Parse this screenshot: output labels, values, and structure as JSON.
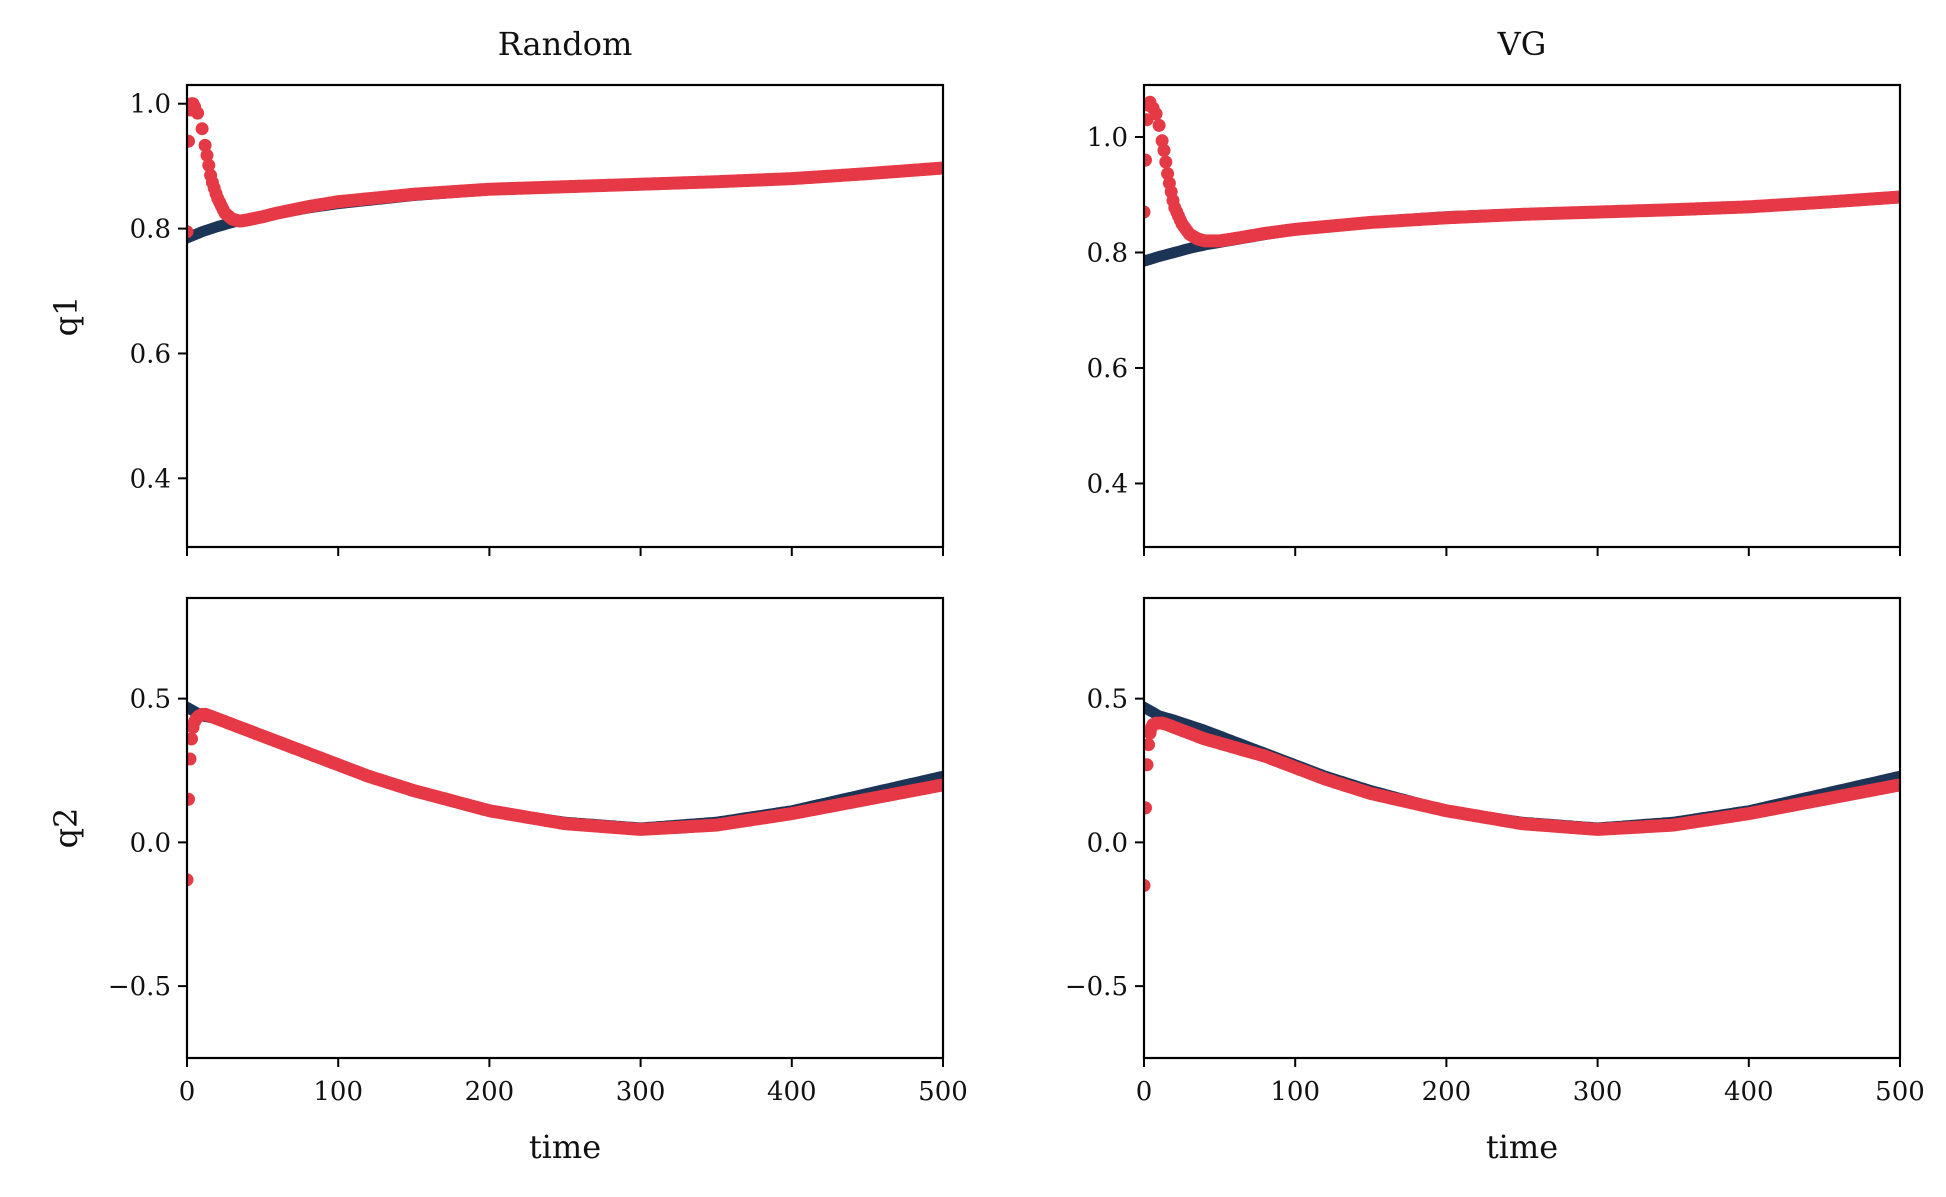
{
  "chart_data": {
    "type": "scatter",
    "layout": "2x2 grid, shared x axis",
    "columns": [
      "Random",
      "VG"
    ],
    "row_labels": [
      "q1",
      "q2"
    ],
    "xlabel": "time",
    "xlim": [
      0,
      500
    ],
    "x_ticks": [
      0,
      100,
      200,
      300,
      400,
      500
    ],
    "colors": {
      "truth": "#1c3557",
      "prediction": "#e63946"
    },
    "panels": [
      {
        "column": "Random",
        "row": "q1",
        "title": "Random",
        "ylabel": "q1",
        "xlabel": "",
        "ylim": [
          0.29,
          1.03
        ],
        "y_ticks": [
          0.4,
          0.6,
          0.8,
          1.0
        ],
        "y_tick_labels": [
          "0.4",
          "0.6",
          "0.8",
          "1.0"
        ],
        "show_x_tick_labels": false,
        "truth": {
          "x": [
            0,
            10,
            20,
            30,
            40,
            60,
            80,
            100,
            150,
            200,
            250,
            300,
            350,
            400,
            450,
            500
          ],
          "y": [
            0.785,
            0.795,
            0.803,
            0.81,
            0.815,
            0.824,
            0.833,
            0.84,
            0.853,
            0.862,
            0.867,
            0.871,
            0.875,
            0.88,
            0.888,
            0.897
          ]
        },
        "prediction": {
          "x": [
            0,
            1,
            2,
            3,
            4,
            5,
            7,
            10,
            13,
            16,
            20,
            25,
            30,
            35,
            40,
            50,
            60,
            80,
            100,
            150,
            200,
            250,
            300,
            350,
            400,
            450,
            500
          ],
          "y": [
            0.795,
            0.94,
            0.99,
            1.0,
            1.0,
            0.995,
            0.985,
            0.96,
            0.92,
            0.88,
            0.85,
            0.825,
            0.815,
            0.812,
            0.814,
            0.819,
            0.825,
            0.835,
            0.843,
            0.855,
            0.863,
            0.867,
            0.871,
            0.875,
            0.88,
            0.888,
            0.897
          ]
        }
      },
      {
        "column": "VG",
        "row": "q1",
        "title": "VG",
        "ylabel": "",
        "xlabel": "",
        "ylim": [
          0.29,
          1.09
        ],
        "y_ticks": [
          0.4,
          0.6,
          0.8,
          1.0
        ],
        "y_tick_labels": [
          "0.4",
          "0.6",
          "0.8",
          "1.0"
        ],
        "show_x_tick_labels": false,
        "truth": {
          "x": [
            0,
            10,
            20,
            30,
            40,
            60,
            80,
            100,
            150,
            200,
            250,
            300,
            350,
            400,
            450,
            500
          ],
          "y": [
            0.785,
            0.793,
            0.8,
            0.807,
            0.813,
            0.822,
            0.831,
            0.839,
            0.853,
            0.862,
            0.867,
            0.871,
            0.875,
            0.88,
            0.888,
            0.897
          ]
        },
        "prediction": {
          "x": [
            0,
            1,
            2,
            3,
            4,
            6,
            8,
            10,
            13,
            16,
            20,
            25,
            30,
            35,
            40,
            50,
            60,
            80,
            100,
            150,
            200,
            250,
            300,
            350,
            400,
            450,
            500
          ],
          "y": [
            0.87,
            0.96,
            1.03,
            1.055,
            1.06,
            1.05,
            1.04,
            1.02,
            0.98,
            0.93,
            0.88,
            0.85,
            0.832,
            0.824,
            0.82,
            0.82,
            0.824,
            0.833,
            0.84,
            0.852,
            0.86,
            0.866,
            0.87,
            0.874,
            0.879,
            0.887,
            0.896
          ]
        }
      },
      {
        "column": "Random",
        "row": "q2",
        "title": "",
        "ylabel": "q2",
        "xlabel": "time",
        "ylim": [
          -0.75,
          0.85
        ],
        "y_ticks": [
          -0.5,
          0.0,
          0.5
        ],
        "y_tick_labels": [
          "−0.5",
          "0.0",
          "0.5"
        ],
        "show_x_tick_labels": true,
        "x_tick_labels": [
          "0",
          "100",
          "200",
          "300",
          "400",
          "500"
        ],
        "truth": {
          "x": [
            0,
            10,
            20,
            40,
            60,
            80,
            100,
            120,
            150,
            200,
            250,
            300,
            350,
            400,
            450,
            500
          ],
          "y": [
            0.47,
            0.44,
            0.43,
            0.39,
            0.35,
            0.31,
            0.27,
            0.23,
            0.18,
            0.11,
            0.07,
            0.05,
            0.07,
            0.11,
            0.17,
            0.23
          ]
        },
        "prediction": {
          "x": [
            0,
            1,
            2,
            3,
            4,
            5,
            6,
            7,
            8,
            10,
            12,
            15,
            20,
            30,
            40,
            60,
            80,
            100,
            120,
            150,
            200,
            250,
            300,
            350,
            400,
            450,
            500
          ],
          "y": [
            -0.13,
            0.15,
            0.29,
            0.36,
            0.4,
            0.42,
            0.43,
            0.435,
            0.44,
            0.445,
            0.445,
            0.44,
            0.43,
            0.41,
            0.39,
            0.35,
            0.31,
            0.27,
            0.23,
            0.18,
            0.11,
            0.065,
            0.045,
            0.06,
            0.1,
            0.15,
            0.2
          ]
        }
      },
      {
        "column": "VG",
        "row": "q2",
        "title": "",
        "ylabel": "",
        "xlabel": "time",
        "ylim": [
          -0.75,
          0.85
        ],
        "y_ticks": [
          -0.5,
          0.0,
          0.5
        ],
        "y_tick_labels": [
          "−0.5",
          "0.0",
          "0.5"
        ],
        "show_x_tick_labels": true,
        "x_tick_labels": [
          "0",
          "100",
          "200",
          "300",
          "400",
          "500"
        ],
        "truth": {
          "x": [
            0,
            10,
            20,
            40,
            60,
            80,
            100,
            120,
            150,
            200,
            250,
            300,
            350,
            400,
            450,
            500
          ],
          "y": [
            0.47,
            0.44,
            0.425,
            0.39,
            0.35,
            0.31,
            0.27,
            0.23,
            0.18,
            0.11,
            0.07,
            0.05,
            0.07,
            0.11,
            0.17,
            0.23
          ]
        },
        "prediction": {
          "x": [
            0,
            1,
            2,
            3,
            4,
            5,
            6,
            8,
            10,
            12,
            15,
            20,
            30,
            40,
            60,
            80,
            100,
            120,
            150,
            200,
            250,
            300,
            350,
            400,
            450,
            500
          ],
          "y": [
            -0.15,
            0.12,
            0.27,
            0.34,
            0.38,
            0.4,
            0.41,
            0.415,
            0.415,
            0.415,
            0.41,
            0.4,
            0.38,
            0.36,
            0.33,
            0.3,
            0.26,
            0.22,
            0.17,
            0.11,
            0.065,
            0.045,
            0.06,
            0.1,
            0.15,
            0.2
          ]
        }
      }
    ]
  }
}
